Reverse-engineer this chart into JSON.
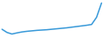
{
  "x": [
    0,
    1,
    2,
    3,
    4,
    5,
    6,
    7,
    8,
    9,
    10,
    11,
    12,
    13,
    14,
    15,
    16,
    17,
    18,
    19,
    20
  ],
  "y": [
    5.5,
    3.5,
    2.5,
    3.2,
    3.8,
    4.2,
    4.5,
    4.8,
    5.0,
    5.2,
    5.5,
    5.8,
    6.1,
    6.4,
    6.8,
    7.2,
    7.6,
    8.0,
    8.5,
    13.0,
    22.0
  ],
  "line_color": "#3a9ad9",
  "background_color": "#ffffff",
  "linewidth": 1.1,
  "ylim_min": 0,
  "ylim_max": 24
}
